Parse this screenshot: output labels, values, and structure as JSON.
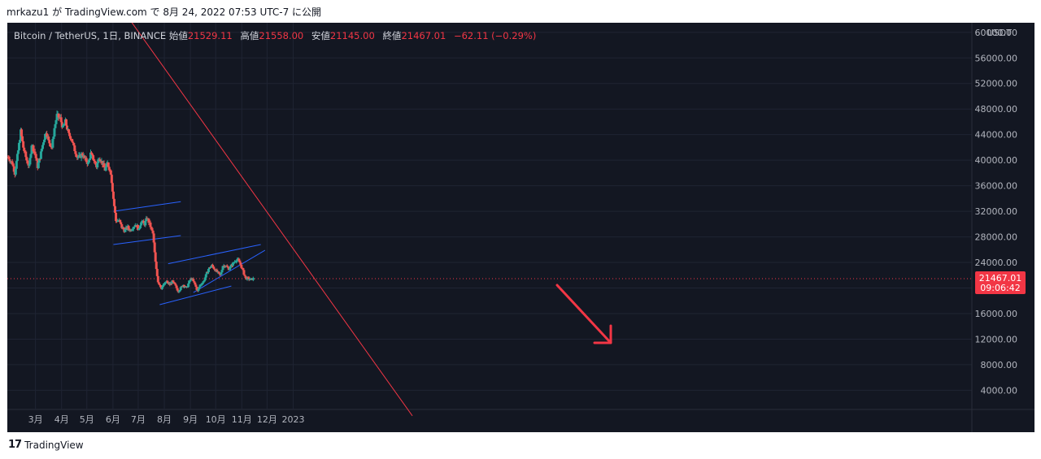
{
  "publish_line": "mrkazu1 が TradingView.com で 8月 24, 2022 07:53 UTC-7 に公開",
  "footer_brand": "TradingView",
  "legend": {
    "symbol": "Bitcoin / TetherUS, 1日, BINANCE",
    "open_label": "始値",
    "open": "21529.11",
    "high_label": "高値",
    "high": "21558.00",
    "low_label": "安値",
    "low": "21145.00",
    "close_label": "終値",
    "close": "21467.01",
    "change": "−62.11 (−0.29%)"
  },
  "chart_data": {
    "type": "candlestick",
    "currency_label": "USDT",
    "y_ticks": [
      "60000.00",
      "56000.00",
      "52000.00",
      "48000.00",
      "44000.00",
      "40000.00",
      "36000.00",
      "32000.00",
      "28000.00",
      "24000.00",
      "20000.00",
      "16000.00",
      "12000.00",
      "8000.00",
      "4000.00"
    ],
    "y_range": [
      1000,
      61500
    ],
    "x_ticks": [
      "3月",
      "4月",
      "5月",
      "6月",
      "7月",
      "8月",
      "9月",
      "10月",
      "11月",
      "12月",
      "2023"
    ],
    "price_label": {
      "value": "21467.01",
      "countdown": "09:06:42",
      "price": 21467.01
    },
    "series_path": [
      [
        0,
        40500
      ],
      [
        5,
        39500
      ],
      [
        8,
        38000
      ],
      [
        12,
        41500
      ],
      [
        15,
        44500
      ],
      [
        18,
        42000
      ],
      [
        22,
        40000
      ],
      [
        25,
        39000
      ],
      [
        28,
        42500
      ],
      [
        32,
        41000
      ],
      [
        35,
        39000
      ],
      [
        38,
        40500
      ],
      [
        42,
        43000
      ],
      [
        45,
        44500
      ],
      [
        48,
        43000
      ],
      [
        52,
        42000
      ],
      [
        55,
        45000
      ],
      [
        58,
        47000
      ],
      [
        62,
        46500
      ],
      [
        65,
        45000
      ],
      [
        68,
        46000
      ],
      [
        72,
        44000
      ],
      [
        75,
        43500
      ],
      [
        78,
        42000
      ],
      [
        82,
        40500
      ],
      [
        85,
        40500
      ],
      [
        88,
        41000
      ],
      [
        92,
        40000
      ],
      [
        95,
        39500
      ],
      [
        98,
        41000
      ],
      [
        102,
        40000
      ],
      [
        105,
        39000
      ],
      [
        108,
        40500
      ],
      [
        112,
        39500
      ],
      [
        115,
        38500
      ],
      [
        118,
        39500
      ],
      [
        122,
        38000
      ],
      [
        125,
        34000
      ],
      [
        128,
        30500
      ],
      [
        132,
        30500
      ],
      [
        135,
        29500
      ],
      [
        138,
        29000
      ],
      [
        142,
        29500
      ],
      [
        145,
        29000
      ],
      [
        148,
        29500
      ],
      [
        152,
        30000
      ],
      [
        155,
        29000
      ],
      [
        158,
        30500
      ],
      [
        162,
        30000
      ],
      [
        165,
        31000
      ],
      [
        168,
        30000
      ],
      [
        172,
        28500
      ],
      [
        175,
        24000
      ],
      [
        178,
        21000
      ],
      [
        182,
        20000
      ],
      [
        185,
        20500
      ],
      [
        188,
        21000
      ],
      [
        192,
        20500
      ],
      [
        195,
        21000
      ],
      [
        198,
        20500
      ],
      [
        202,
        19500
      ],
      [
        205,
        20000
      ],
      [
        208,
        20500
      ],
      [
        212,
        20000
      ],
      [
        215,
        21000
      ],
      [
        218,
        21500
      ],
      [
        222,
        20500
      ],
      [
        225,
        19500
      ],
      [
        228,
        20500
      ],
      [
        232,
        21000
      ],
      [
        235,
        22000
      ],
      [
        238,
        23000
      ],
      [
        242,
        23500
      ],
      [
        245,
        23000
      ],
      [
        248,
        22500
      ],
      [
        252,
        22000
      ],
      [
        255,
        23500
      ],
      [
        258,
        23500
      ],
      [
        262,
        23000
      ],
      [
        265,
        23500
      ],
      [
        268,
        24000
      ],
      [
        272,
        24500
      ],
      [
        275,
        24000
      ],
      [
        278,
        23000
      ],
      [
        282,
        21500
      ],
      [
        285,
        21500
      ],
      [
        288,
        21300
      ],
      [
        291,
        21467
      ]
    ],
    "annotations": {
      "long_downtrend": [
        [
          120,
          66500
        ],
        [
          480,
          0
        ]
      ],
      "upper_channel_may": [
        [
          125,
          32000
        ],
        [
          205,
          33500
        ]
      ],
      "lower_channel_may": [
        [
          125,
          26800
        ],
        [
          205,
          28200
        ]
      ],
      "upper_channel_jul": [
        [
          190,
          23800
        ],
        [
          300,
          26800
        ]
      ],
      "lower_channel_jul": [
        [
          180,
          17400
        ],
        [
          265,
          20300
        ]
      ],
      "inner_line_jul": [
        [
          220,
          19300
        ],
        [
          305,
          25900
        ]
      ]
    }
  }
}
